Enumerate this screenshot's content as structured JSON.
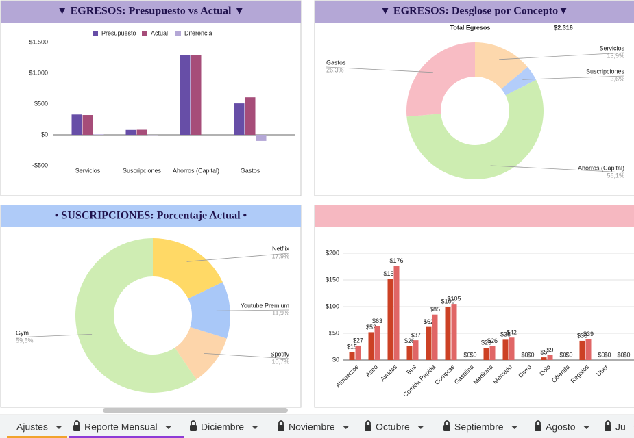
{
  "chart_data": [
    {
      "type": "bar",
      "title": "▼ EGRESOS: Presupuesto vs Actual ▼",
      "categories": [
        "Servicios",
        "Suscripciones",
        "Ahorros (Capital)",
        "Gastos"
      ],
      "series": [
        {
          "name": "Presupuesto",
          "color": "#674ea7",
          "values": [
            330,
            80,
            1300,
            510
          ]
        },
        {
          "name": "Actual",
          "color": "#a64d79",
          "values": [
            322,
            83,
            1300,
            609
          ]
        },
        {
          "name": "Diferencia",
          "color": "#b4a7d6",
          "values": [
            8,
            -3,
            0,
            -99
          ]
        }
      ],
      "ylim": [
        -500,
        1500
      ],
      "yticks": [
        {
          "value": 1500,
          "label": "$1.500"
        },
        {
          "value": 1000,
          "label": "$1.000"
        },
        {
          "value": 500,
          "label": "$500"
        },
        {
          "value": 0,
          "label": "$0"
        },
        {
          "value": -500,
          "label": "-$500"
        }
      ],
      "grid": false,
      "legend": "top"
    },
    {
      "type": "pie",
      "title": "▼ EGRESOS: Desglose por Concepto▼",
      "annotations": [
        "Total Egresos",
        "$2.316"
      ],
      "categories": [
        "Servicios",
        "Suscripciones",
        "Ahorros (Capital)",
        "Gastos"
      ],
      "values": [
        13.9,
        3.6,
        56.1,
        26.3
      ],
      "value_labels": [
        "13,9%",
        "3,6%",
        "56,1%",
        "26,3%"
      ],
      "colors": [
        "#fdd8ad",
        "#b3cdfa",
        "#cdedb1",
        "#f8bcc4"
      ]
    },
    {
      "type": "pie",
      "title": "• SUSCRIPCIONES: Porcentaje Actual •",
      "categories": [
        "Netflix",
        "Youtube Premium",
        "Spotify",
        "Gym"
      ],
      "values": [
        17.9,
        11.9,
        10.7,
        59.5
      ],
      "value_labels": [
        "17,9%",
        "11,9%",
        "10,7%",
        "59,5%"
      ],
      "colors": [
        "#ffd966",
        "#a9c8f8",
        "#fdd5aa",
        "#cfedb3"
      ]
    },
    {
      "type": "bar",
      "categories": [
        "Almuerzos",
        "Aseo",
        "Ayudas",
        "Bus",
        "Comida Rapida",
        "Compras",
        "Gasolina",
        "Medicina",
        "Mercado",
        "Carro",
        "Ocio",
        "Ofrenda",
        "Regalos",
        "Uber",
        null
      ],
      "series": [
        {
          "color": "#cc4125",
          "values": [
            15,
            52,
            152,
            26,
            62,
            100,
            0,
            23,
            38,
            0,
            5,
            0,
            36,
            0,
            0
          ],
          "value_labels": [
            "$15",
            "$52",
            "$152",
            "$26",
            "$62",
            "$100",
            "$0",
            "$23",
            "$38",
            "$0",
            "$5",
            "$0",
            "$36",
            "$0",
            "$0"
          ]
        },
        {
          "color": "#e06666",
          "values": [
            27,
            63,
            176,
            37,
            85,
            105,
            0,
            26,
            42,
            0,
            9,
            0,
            39,
            0,
            0
          ],
          "value_labels": [
            "$27",
            "$63",
            "$176",
            "$37",
            "$85",
            "$105",
            "$0",
            "$26",
            "$42",
            "$0",
            "$9",
            "$0",
            "$39",
            "$0",
            "$0"
          ]
        }
      ],
      "ylim": [
        0,
        200
      ],
      "yticks": [
        {
          "value": 0,
          "label": "$0"
        },
        {
          "value": 50,
          "label": "$50"
        },
        {
          "value": 100,
          "label": "$100"
        },
        {
          "value": 150,
          "label": "$150"
        },
        {
          "value": 200,
          "label": "$200"
        }
      ],
      "grid": true
    }
  ],
  "tabs": [
    {
      "label": "Ajustes",
      "locked": false,
      "color": "#f1a32c"
    },
    {
      "label": "Reporte Mensual",
      "locked": true,
      "color": "#8e3ad6"
    },
    {
      "label": "Diciembre",
      "locked": true
    },
    {
      "label": "Noviembre",
      "locked": true
    },
    {
      "label": "Octubre",
      "locked": true
    },
    {
      "label": "Septiembre",
      "locked": true
    },
    {
      "label": "Agosto",
      "locked": true
    },
    {
      "label": "Ju",
      "locked": true
    }
  ]
}
